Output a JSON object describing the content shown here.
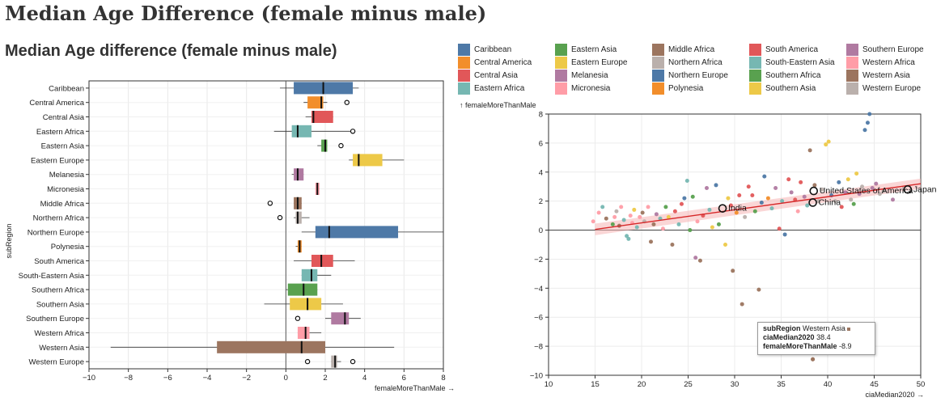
{
  "page": {
    "title": "Median Age Difference (female minus male)"
  },
  "boxplot": {
    "title": "Median Age difference (female minus male)",
    "xlabel": "femaleMoreThanMale →",
    "ylabel": "subRegion"
  },
  "legend": {
    "items": [
      {
        "label": "Caribbean",
        "color": "#4e79a7"
      },
      {
        "label": "Central America",
        "color": "#f28e2b"
      },
      {
        "label": "Central Asia",
        "color": "#e15759"
      },
      {
        "label": "Eastern Africa",
        "color": "#76b7b2"
      },
      {
        "label": "Eastern Asia",
        "color": "#59a14f"
      },
      {
        "label": "Eastern Europe",
        "color": "#edc948"
      },
      {
        "label": "Melanesia",
        "color": "#b07aa1"
      },
      {
        "label": "Micronesia",
        "color": "#ff9da7"
      },
      {
        "label": "Middle Africa",
        "color": "#9c755f"
      },
      {
        "label": "Northern Africa",
        "color": "#bab0ac"
      },
      {
        "label": "Northern Europe",
        "color": "#4e79a7"
      },
      {
        "label": "Polynesia",
        "color": "#f28e2b"
      },
      {
        "label": "South America",
        "color": "#e15759"
      },
      {
        "label": "South-Eastern Asia",
        "color": "#76b7b2"
      },
      {
        "label": "Southern Africa",
        "color": "#59a14f"
      },
      {
        "label": "Southern Asia",
        "color": "#edc948"
      },
      {
        "label": "Southern Europe",
        "color": "#b07aa1"
      },
      {
        "label": "Western Africa",
        "color": "#ff9da7"
      },
      {
        "label": "Western Asia",
        "color": "#9c755f"
      },
      {
        "label": "Western Europe",
        "color": "#bab0ac"
      }
    ]
  },
  "tooltip": {
    "k1": "subRegion",
    "v1": "Western Asia",
    "k2": "ciaMedian2020",
    "v2": "38.4",
    "k3": "femaleMoreThanMale",
    "v3": "-8.9"
  },
  "chart_data": [
    {
      "type": "box",
      "title": "Median Age difference (female minus male)",
      "xlabel": "femaleMoreThanMale →",
      "ylabel": "subRegion",
      "xlim": [
        -10,
        8
      ],
      "xticks": [
        -10,
        -8,
        -6,
        -4,
        -2,
        0,
        2,
        4,
        6,
        8
      ],
      "categories": [
        "Caribbean",
        "Central America",
        "Central Asia",
        "Eastern Africa",
        "Eastern Asia",
        "Eastern Europe",
        "Melanesia",
        "Micronesia",
        "Middle Africa",
        "Northern Africa",
        "Northern Europe",
        "Polynesia",
        "South America",
        "South-Eastern Asia",
        "Southern Africa",
        "Southern Asia",
        "Southern Europe",
        "Western Africa",
        "Western Asia",
        "Western Europe"
      ],
      "colors": [
        "#4e79a7",
        "#f28e2b",
        "#e15759",
        "#76b7b2",
        "#59a14f",
        "#edc948",
        "#b07aa1",
        "#ff9da7",
        "#9c755f",
        "#bab0ac",
        "#4e79a7",
        "#f28e2b",
        "#e15759",
        "#76b7b2",
        "#59a14f",
        "#edc948",
        "#b07aa1",
        "#ff9da7",
        "#9c755f",
        "#bab0ac"
      ],
      "boxes": [
        {
          "min": -0.3,
          "q1": 0.4,
          "median": 1.9,
          "q3": 3.4,
          "max": 3.7,
          "outliers": []
        },
        {
          "min": 0.9,
          "q1": 1.1,
          "median": 1.8,
          "q3": 1.9,
          "max": 2.1,
          "outliers": [
            3.1
          ]
        },
        {
          "min": 1.0,
          "q1": 1.3,
          "median": 1.4,
          "q3": 2.4,
          "max": 2.4,
          "outliers": []
        },
        {
          "min": -0.6,
          "q1": 0.3,
          "median": 0.6,
          "q3": 1.3,
          "max": 3.3,
          "outliers": [
            3.4
          ]
        },
        {
          "min": 1.6,
          "q1": 1.8,
          "median": 2.0,
          "q3": 2.1,
          "max": 2.1,
          "outliers": [
            2.8
          ]
        },
        {
          "min": 3.2,
          "q1": 3.4,
          "median": 3.7,
          "q3": 4.9,
          "max": 6.0,
          "outliers": []
        },
        {
          "min": 0.3,
          "q1": 0.4,
          "median": 0.6,
          "q3": 0.9,
          "max": 0.9,
          "outliers": []
        },
        {
          "min": 1.5,
          "q1": 1.5,
          "median": 1.6,
          "q3": 1.7,
          "max": 1.7,
          "outliers": []
        },
        {
          "min": 0.4,
          "q1": 0.4,
          "median": 0.6,
          "q3": 0.8,
          "max": 0.8,
          "outliers": [
            -0.8
          ]
        },
        {
          "min": 0.4,
          "q1": 0.5,
          "median": 0.6,
          "q3": 0.8,
          "max": 1.2,
          "outliers": [
            -0.3
          ]
        },
        {
          "min": 0.8,
          "q1": 1.5,
          "median": 2.2,
          "q3": 5.7,
          "max": 8.0,
          "outliers": []
        },
        {
          "min": 0.5,
          "q1": 0.6,
          "median": 0.7,
          "q3": 0.8,
          "max": 0.8,
          "outliers": []
        },
        {
          "min": 0.4,
          "q1": 1.3,
          "median": 1.8,
          "q3": 2.4,
          "max": 3.5,
          "outliers": []
        },
        {
          "min": 0.8,
          "q1": 0.8,
          "median": 1.3,
          "q3": 1.6,
          "max": 2.3,
          "outliers": []
        },
        {
          "min": 0.0,
          "q1": 0.1,
          "median": 0.9,
          "q3": 1.6,
          "max": 1.6,
          "outliers": []
        },
        {
          "min": -1.1,
          "q1": 0.2,
          "median": 1.1,
          "q3": 1.8,
          "max": 2.9,
          "outliers": []
        },
        {
          "min": 2.0,
          "q1": 2.3,
          "median": 3.0,
          "q3": 3.2,
          "max": 3.8,
          "outliers": [
            0.6
          ]
        },
        {
          "min": 0.6,
          "q1": 0.6,
          "median": 1.0,
          "q3": 1.2,
          "max": 1.8,
          "outliers": []
        },
        {
          "min": -8.9,
          "q1": -3.5,
          "median": 0.8,
          "q3": 2.0,
          "max": 5.5,
          "outliers": []
        },
        {
          "min": 2.3,
          "q1": 2.3,
          "median": 2.5,
          "q3": 2.6,
          "max": 2.8,
          "outliers": [
            1.1,
            3.4
          ]
        }
      ]
    },
    {
      "type": "scatter",
      "xlabel": "ciaMedian2020 →",
      "ylabel": "↑ femaleMoreThanMale",
      "xlim": [
        10,
        50
      ],
      "ylim": [
        -10,
        8
      ],
      "xticks": [
        10,
        15,
        20,
        25,
        30,
        35,
        40,
        45,
        50
      ],
      "yticks": [
        -10,
        -8,
        -6,
        -4,
        -2,
        0,
        2,
        4,
        6,
        8
      ],
      "grid": true,
      "regression": {
        "x": [
          15,
          50
        ],
        "y": [
          0.05,
          3.2
        ],
        "band_halfwidth": [
          0.4,
          0.35
        ]
      },
      "labeled_points": [
        {
          "label": "India",
          "x": 28.7,
          "y": 1.5
        },
        {
          "label": "United States of America",
          "x": 38.5,
          "y": 2.7
        },
        {
          "label": "China",
          "x": 38.4,
          "y": 1.9
        },
        {
          "label": "Japan",
          "x": 48.6,
          "y": 2.8
        }
      ],
      "points": [
        {
          "x": 14.8,
          "y": 0.6,
          "c": "#ff9da7"
        },
        {
          "x": 15.4,
          "y": 1.2,
          "c": "#ff9da7"
        },
        {
          "x": 15.8,
          "y": 1.6,
          "c": "#76b7b2"
        },
        {
          "x": 16.2,
          "y": 0.8,
          "c": "#9c755f"
        },
        {
          "x": 16.9,
          "y": 0.4,
          "c": "#59a14f"
        },
        {
          "x": 17.1,
          "y": 0.9,
          "c": "#ff9da7"
        },
        {
          "x": 17.3,
          "y": 1.3,
          "c": "#bab0ac"
        },
        {
          "x": 17.6,
          "y": 0.3,
          "c": "#9c755f"
        },
        {
          "x": 17.8,
          "y": 1.6,
          "c": "#ff9da7"
        },
        {
          "x": 18.1,
          "y": 0.7,
          "c": "#76b7b2"
        },
        {
          "x": 18.4,
          "y": -0.4,
          "c": "#76b7b2"
        },
        {
          "x": 18.6,
          "y": -0.6,
          "c": "#76b7b2"
        },
        {
          "x": 18.8,
          "y": 1.0,
          "c": "#ff9da7"
        },
        {
          "x": 19.0,
          "y": 0.5,
          "c": "#ff9da7"
        },
        {
          "x": 19.2,
          "y": 1.4,
          "c": "#edc948"
        },
        {
          "x": 19.5,
          "y": 0.2,
          "c": "#76b7b2"
        },
        {
          "x": 19.8,
          "y": 0.9,
          "c": "#ff9da7"
        },
        {
          "x": 20.1,
          "y": 1.2,
          "c": "#9c755f"
        },
        {
          "x": 20.3,
          "y": 0.6,
          "c": "#bab0ac"
        },
        {
          "x": 20.7,
          "y": 1.6,
          "c": "#ff9da7"
        },
        {
          "x": 21.0,
          "y": -0.8,
          "c": "#9c755f"
        },
        {
          "x": 21.3,
          "y": 0.4,
          "c": "#9c755f"
        },
        {
          "x": 21.6,
          "y": 1.1,
          "c": "#b07aa1"
        },
        {
          "x": 22.0,
          "y": 0.8,
          "c": "#76b7b2"
        },
        {
          "x": 22.3,
          "y": 0.1,
          "c": "#ff9da7"
        },
        {
          "x": 22.6,
          "y": 1.6,
          "c": "#59a14f"
        },
        {
          "x": 22.9,
          "y": 0.9,
          "c": "#edc948"
        },
        {
          "x": 23.3,
          "y": -1.0,
          "c": "#9c755f"
        },
        {
          "x": 23.6,
          "y": 1.3,
          "c": "#e15759"
        },
        {
          "x": 24.0,
          "y": 0.4,
          "c": "#76b7b2"
        },
        {
          "x": 24.3,
          "y": 1.8,
          "c": "#e15759"
        },
        {
          "x": 24.6,
          "y": 2.2,
          "c": "#4e79a7"
        },
        {
          "x": 24.9,
          "y": 3.4,
          "c": "#76b7b2"
        },
        {
          "x": 25.2,
          "y": 0.0,
          "c": "#59a14f"
        },
        {
          "x": 25.5,
          "y": 2.3,
          "c": "#59a14f"
        },
        {
          "x": 25.8,
          "y": -1.9,
          "c": "#b07aa1"
        },
        {
          "x": 26.0,
          "y": 0.6,
          "c": "#ff9da7"
        },
        {
          "x": 26.3,
          "y": -2.1,
          "c": "#9c755f"
        },
        {
          "x": 26.6,
          "y": 1.0,
          "c": "#e15759"
        },
        {
          "x": 27.0,
          "y": 2.9,
          "c": "#b07aa1"
        },
        {
          "x": 27.3,
          "y": 1.4,
          "c": "#76b7b2"
        },
        {
          "x": 27.6,
          "y": 0.2,
          "c": "#edc948"
        },
        {
          "x": 28.0,
          "y": 3.1,
          "c": "#4e79a7"
        },
        {
          "x": 28.3,
          "y": 0.4,
          "c": "#59a14f"
        },
        {
          "x": 29.0,
          "y": -1.0,
          "c": "#edc948"
        },
        {
          "x": 29.3,
          "y": 2.2,
          "c": "#edc948"
        },
        {
          "x": 29.6,
          "y": 1.7,
          "c": "#e15759"
        },
        {
          "x": 29.8,
          "y": -2.8,
          "c": "#9c755f"
        },
        {
          "x": 30.2,
          "y": 1.2,
          "c": "#f28e2b"
        },
        {
          "x": 30.5,
          "y": 2.4,
          "c": "#e15759"
        },
        {
          "x": 30.8,
          "y": -5.1,
          "c": "#9c755f"
        },
        {
          "x": 31.1,
          "y": 0.9,
          "c": "#bab0ac"
        },
        {
          "x": 31.5,
          "y": 3.0,
          "c": "#e15759"
        },
        {
          "x": 31.9,
          "y": 2.4,
          "c": "#e15759"
        },
        {
          "x": 32.2,
          "y": 1.3,
          "c": "#59a14f"
        },
        {
          "x": 32.6,
          "y": -4.1,
          "c": "#9c755f"
        },
        {
          "x": 32.9,
          "y": 1.9,
          "c": "#4e79a7"
        },
        {
          "x": 33.2,
          "y": 3.7,
          "c": "#4e79a7"
        },
        {
          "x": 33.6,
          "y": 2.2,
          "c": "#f28e2b"
        },
        {
          "x": 34.0,
          "y": 1.5,
          "c": "#76b7b2"
        },
        {
          "x": 34.4,
          "y": 2.9,
          "c": "#b07aa1"
        },
        {
          "x": 34.8,
          "y": 0.1,
          "c": "#e15759"
        },
        {
          "x": 35.1,
          "y": 2.0,
          "c": "#76b7b2"
        },
        {
          "x": 35.4,
          "y": -0.3,
          "c": "#4e79a7"
        },
        {
          "x": 35.8,
          "y": 3.5,
          "c": "#e15759"
        },
        {
          "x": 36.1,
          "y": 2.6,
          "c": "#b07aa1"
        },
        {
          "x": 36.5,
          "y": 2.1,
          "c": "#e15759"
        },
        {
          "x": 36.8,
          "y": 1.3,
          "c": "#ff9da7"
        },
        {
          "x": 37.1,
          "y": 3.3,
          "c": "#e15759"
        },
        {
          "x": 37.5,
          "y": 2.3,
          "c": "#b07aa1"
        },
        {
          "x": 37.8,
          "y": 1.7,
          "c": "#76b7b2"
        },
        {
          "x": 38.1,
          "y": 5.5,
          "c": "#9c755f"
        },
        {
          "x": 38.4,
          "y": -8.9,
          "c": "#9c755f"
        },
        {
          "x": 38.6,
          "y": 3.1,
          "c": "#9c755f"
        },
        {
          "x": 39.0,
          "y": 2.0,
          "c": "#bab0ac"
        },
        {
          "x": 39.4,
          "y": 2.8,
          "c": "#bab0ac"
        },
        {
          "x": 39.8,
          "y": 5.9,
          "c": "#edc948"
        },
        {
          "x": 40.1,
          "y": 6.1,
          "c": "#edc948"
        },
        {
          "x": 40.4,
          "y": 2.4,
          "c": "#4e79a7"
        },
        {
          "x": 40.8,
          "y": 2.0,
          "c": "#bab0ac"
        },
        {
          "x": 41.2,
          "y": 3.3,
          "c": "#4e79a7"
        },
        {
          "x": 41.5,
          "y": 1.6,
          "c": "#e15759"
        },
        {
          "x": 41.9,
          "y": 2.6,
          "c": "#b07aa1"
        },
        {
          "x": 42.2,
          "y": 3.5,
          "c": "#edc948"
        },
        {
          "x": 42.5,
          "y": 2.1,
          "c": "#bab0ac"
        },
        {
          "x": 42.8,
          "y": 1.8,
          "c": "#59a14f"
        },
        {
          "x": 43.1,
          "y": 3.9,
          "c": "#edc948"
        },
        {
          "x": 43.4,
          "y": 2.5,
          "c": "#b07aa1"
        },
        {
          "x": 43.7,
          "y": 3.0,
          "c": "#bab0ac"
        },
        {
          "x": 44.0,
          "y": 6.9,
          "c": "#4e79a7"
        },
        {
          "x": 44.3,
          "y": 7.4,
          "c": "#4e79a7"
        },
        {
          "x": 44.5,
          "y": 8.0,
          "c": "#4e79a7"
        },
        {
          "x": 44.8,
          "y": 2.9,
          "c": "#b07aa1"
        },
        {
          "x": 45.2,
          "y": 3.2,
          "c": "#b07aa1"
        },
        {
          "x": 45.6,
          "y": 2.5,
          "c": "#bab0ac"
        },
        {
          "x": 46.0,
          "y": 2.7,
          "c": "#bab0ac"
        },
        {
          "x": 47.0,
          "y": 2.1,
          "c": "#b07aa1"
        }
      ]
    }
  ]
}
